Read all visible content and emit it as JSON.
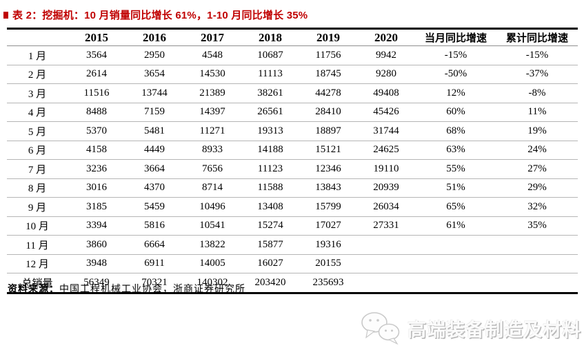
{
  "title": {
    "text": "表 2：挖掘机：10 月销量同比增长 61%，1-10 月同比增长 35%"
  },
  "table": {
    "columns": [
      "",
      "2015",
      "2016",
      "2017",
      "2018",
      "2019",
      "2020",
      "当月同比增速",
      "累计同比增速"
    ],
    "rows": [
      {
        "label": "1 月",
        "values": [
          "3564",
          "2950",
          "4548",
          "10687",
          "11756",
          "9942",
          "-15%",
          "-15%"
        ]
      },
      {
        "label": "2 月",
        "values": [
          "2614",
          "3654",
          "14530",
          "11113",
          "18745",
          "9280",
          "-50%",
          "-37%"
        ]
      },
      {
        "label": "3 月",
        "values": [
          "11516",
          "13744",
          "21389",
          "38261",
          "44278",
          "49408",
          "12%",
          "-8%"
        ]
      },
      {
        "label": "4 月",
        "values": [
          "8488",
          "7159",
          "14397",
          "26561",
          "28410",
          "45426",
          "60%",
          "11%"
        ]
      },
      {
        "label": "5 月",
        "values": [
          "5370",
          "5481",
          "11271",
          "19313",
          "18897",
          "31744",
          "68%",
          "19%"
        ]
      },
      {
        "label": "6 月",
        "values": [
          "4158",
          "4449",
          "8933",
          "14188",
          "15121",
          "24625",
          "63%",
          "24%"
        ]
      },
      {
        "label": "7 月",
        "values": [
          "3236",
          "3664",
          "7656",
          "11123",
          "12346",
          "19110",
          "55%",
          "27%"
        ]
      },
      {
        "label": "8 月",
        "values": [
          "3016",
          "4370",
          "8714",
          "11588",
          "13843",
          "20939",
          "51%",
          "29%"
        ]
      },
      {
        "label": "9 月",
        "values": [
          "3185",
          "5459",
          "10496",
          "13408",
          "15799",
          "26034",
          "65%",
          "32%"
        ]
      },
      {
        "label": "10 月",
        "values": [
          "3394",
          "5816",
          "10541",
          "15274",
          "17027",
          "27331",
          "61%",
          "35%"
        ]
      },
      {
        "label": "11 月",
        "values": [
          "3860",
          "6664",
          "13822",
          "15877",
          "19316",
          "",
          "",
          ""
        ]
      },
      {
        "label": "12 月",
        "values": [
          "3948",
          "6911",
          "14005",
          "16027",
          "20155",
          "",
          "",
          ""
        ]
      },
      {
        "label": "总销量",
        "values": [
          "56349",
          "70321",
          "140302",
          "203420",
          "235693",
          "",
          "",
          ""
        ]
      }
    ]
  },
  "footer": {
    "source_label": "资料来源：",
    "source_text": "中国工程机械工业协会，浙商证券研究所"
  },
  "watermark": {
    "icon": "wechat-icon",
    "text": "高端装备制造及材料"
  },
  "colors": {
    "accent_red": "#c00000",
    "border_black": "#000000",
    "row_line_gray": "#b5b5b5",
    "watermark_gray": "#b9b9b9"
  }
}
